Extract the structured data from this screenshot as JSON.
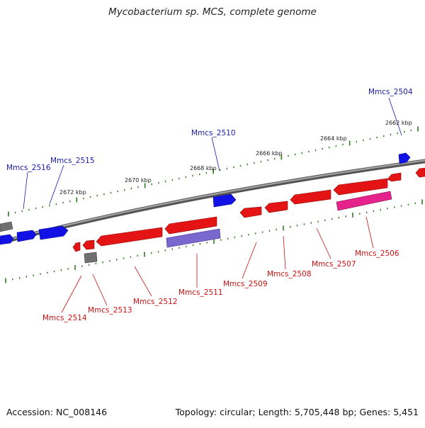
{
  "title": "Mycobacterium sp. MCS, complete genome",
  "footer": {
    "accession": "Accession: NC_008146",
    "summary": "Topology: circular; Length: 5,705,448 bp; Genes: 5,451"
  },
  "colors": {
    "forward_gene": "#1010e0",
    "reverse_gene": "#e01010",
    "backbone": "#808080",
    "tick": "#2e7d1f",
    "violet_gene": "#7a68cf",
    "magenta_gene": "#e0208a",
    "gray_gene": "#6e6e6e",
    "forward_label": "#1a1aa8",
    "reverse_label": "#cc1111"
  },
  "scale_labels": [
    "2662 kbp",
    "2664 kbp",
    "2666 kbp",
    "2668 kbp",
    "2670 kbp",
    "2672 kbp"
  ],
  "forward_labels": [
    "Mmcs_2504",
    "Mmcs_2510",
    "Mmcs_2515",
    "Mmcs_2516"
  ],
  "reverse_labels": [
    "Mmcs_2506",
    "Mmcs_2507",
    "Mmcs_2508",
    "Mmcs_2509",
    "Mmcs_2511",
    "Mmcs_2512",
    "Mmcs_2513",
    "Mmcs_2514"
  ]
}
